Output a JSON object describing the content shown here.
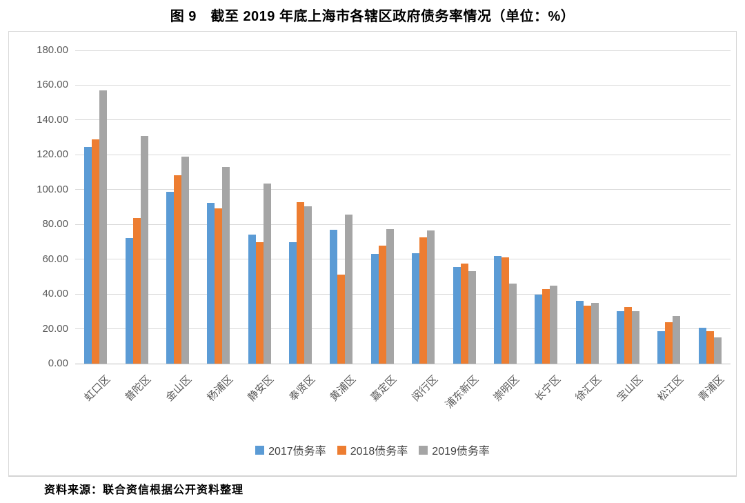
{
  "title": "图 9　截至 2019 年底上海市各辖区政府债务率情况（单位：%）",
  "source": "资料来源：联合资信根据公开资料整理",
  "chart_data": {
    "type": "bar",
    "title": "图 9　截至 2019 年底上海市各辖区政府债务率情况",
    "unit": "%",
    "xlabel": "",
    "ylabel": "",
    "ylim": [
      0,
      180
    ],
    "y_step": 20,
    "y_tick_labels": [
      "0.00",
      "20.00",
      "40.00",
      "60.00",
      "80.00",
      "100.00",
      "120.00",
      "140.00",
      "160.00",
      "180.00"
    ],
    "grid": true,
    "legend_position": "bottom",
    "categories": [
      "虹口区",
      "普陀区",
      "金山区",
      "杨浦区",
      "静安区",
      "奉贤区",
      "黄浦区",
      "嘉定区",
      "闵行区",
      "浦东新区",
      "崇明区",
      "长宁区",
      "徐汇区",
      "宝山区",
      "松江区",
      "青浦区"
    ],
    "series": [
      {
        "name": "2017债务率",
        "color": "#5B9BD5",
        "values": [
          124.5,
          72.3,
          98.8,
          92.5,
          74.0,
          69.8,
          77.0,
          63.0,
          63.3,
          55.4,
          62.0,
          39.7,
          36.0,
          30.0,
          18.8,
          20.5
        ]
      },
      {
        "name": "2018债务率",
        "color": "#ED7D31",
        "values": [
          129.0,
          83.7,
          108.3,
          89.2,
          69.8,
          92.8,
          51.0,
          68.0,
          72.5,
          57.6,
          61.2,
          42.8,
          33.5,
          32.4,
          23.6,
          18.5
        ]
      },
      {
        "name": "2019债务率",
        "color": "#A5A5A5",
        "values": [
          157.0,
          131.0,
          119.0,
          113.0,
          103.3,
          90.3,
          85.5,
          77.3,
          76.6,
          53.0,
          46.0,
          44.8,
          35.0,
          30.3,
          27.2,
          15.0
        ]
      }
    ],
    "style_colors": {
      "gridline": "#D9D9D9",
      "axis_line": "#BFBFBF",
      "tick_text": "#595959",
      "legend_text": "#404040"
    }
  }
}
